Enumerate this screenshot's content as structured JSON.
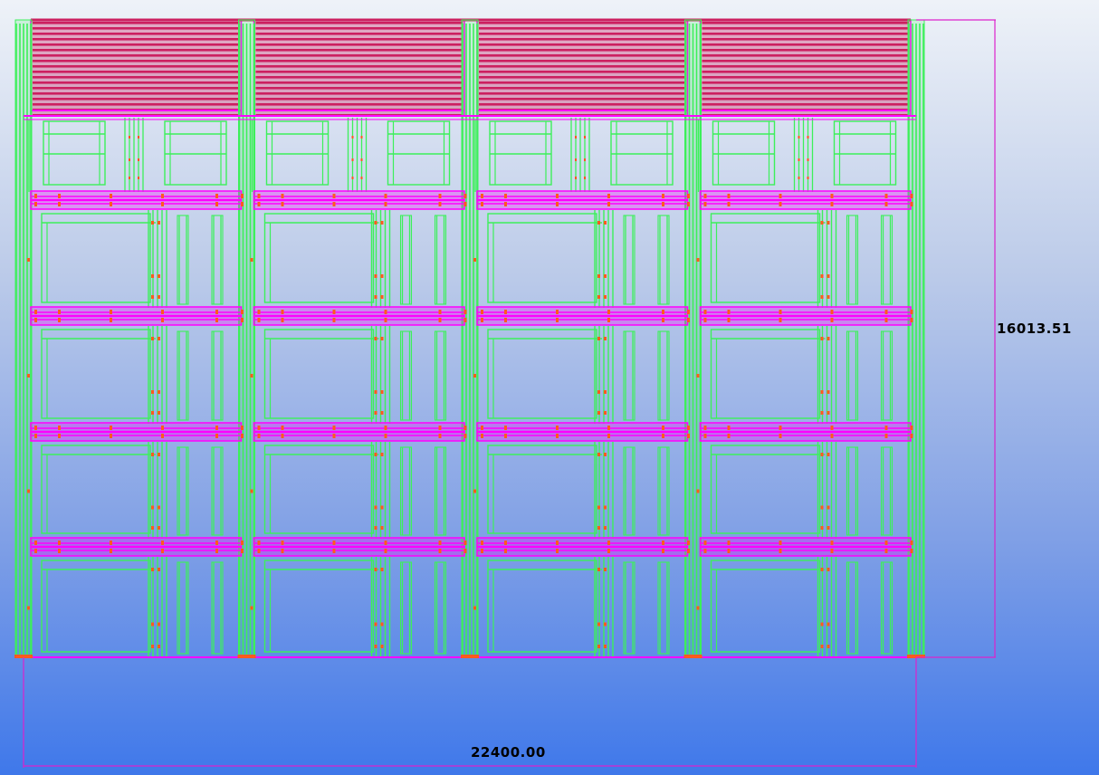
{
  "dimensions": {
    "horizontal": "22400.00",
    "vertical": "16013.51"
  },
  "model": {
    "bays": 4,
    "floor_levels": 5,
    "roof_slats_per_bay": 17
  },
  "colors": {
    "background_top": "#eef2f8",
    "background_bottom": "#3f78ea",
    "column_green": "#3cf05a",
    "beam_magenta": "#ff00ff",
    "roof_crimson": "#cc2060",
    "bolt_orange": "#ff5a1e",
    "dimension_line": "#dd22cc",
    "dimension_text": "#000000"
  }
}
